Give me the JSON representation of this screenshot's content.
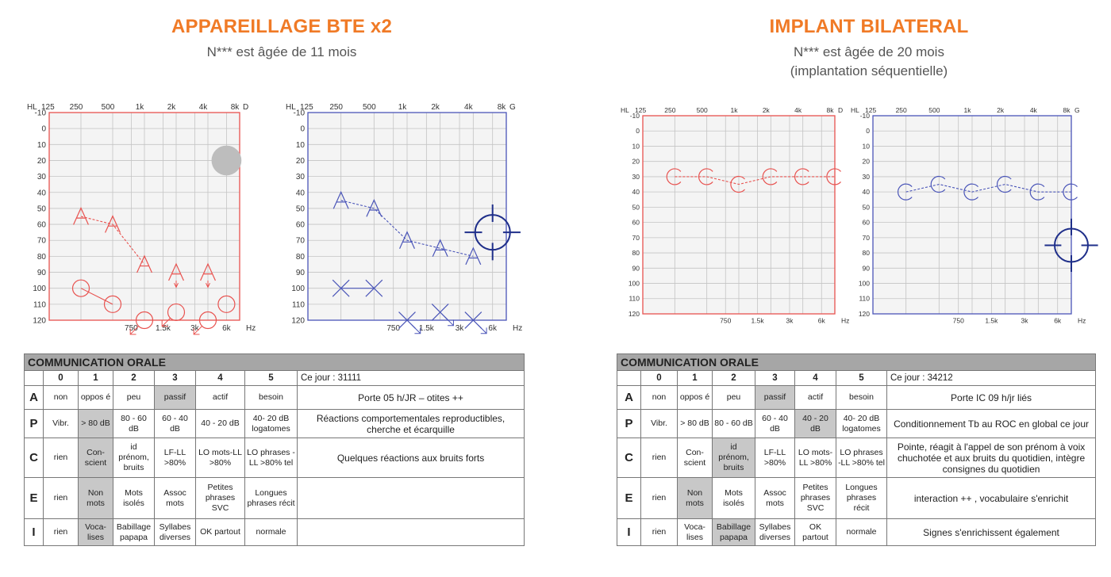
{
  "left": {
    "title": "APPAREILLAGE BTE x2",
    "subtitle_lines": [
      "N*** est âgée de 11 mois"
    ],
    "audiograms": [
      {
        "ear": "D",
        "color": "#e8524f",
        "top_freq_labels": [
          "125",
          "250",
          "500",
          "1k",
          "2k",
          "4k",
          "8k"
        ],
        "bottom_freq_labels": [
          "750",
          "1.5k",
          "3k",
          "6k"
        ],
        "hz_label": "Hz",
        "hl_label": "HL",
        "db_labels": [
          "-10",
          "0",
          "10",
          "20",
          "30",
          "40",
          "50",
          "60",
          "70",
          "80",
          "90",
          "100",
          "110",
          "120"
        ],
        "series": [
          {
            "symbol": "A",
            "points": [
              [
                250,
                55
              ],
              [
                500,
                60
              ],
              [
                1000,
                85
              ]
            ],
            "line": "dashed"
          },
          {
            "symbol": "A-down",
            "points": [
              [
                2000,
                90
              ],
              [
                4000,
                90
              ]
            ],
            "line": "none"
          },
          {
            "symbol": "O",
            "points": [
              [
                250,
                100
              ],
              [
                500,
                110
              ]
            ],
            "line": "solid"
          },
          {
            "symbol": "O-down",
            "points": [
              [
                1000,
                120
              ],
              [
                2000,
                115
              ],
              [
                4000,
                120
              ]
            ],
            "line": "none"
          },
          {
            "symbol": "O",
            "points": [
              [
                6000,
                110
              ]
            ],
            "line": "none"
          },
          {
            "symbol": "grey-dot",
            "points": [
              [
                6000,
                20
              ]
            ],
            "line": "none"
          }
        ]
      },
      {
        "ear": "G",
        "color": "#4a55b8",
        "top_freq_labels": [
          "125",
          "250",
          "500",
          "1k",
          "2k",
          "4k",
          "8k"
        ],
        "bottom_freq_labels": [
          "750",
          "1.5k",
          "3k",
          "6k"
        ],
        "hz_label": "Hz",
        "hl_label": "HL",
        "db_labels": [
          "-10",
          "0",
          "10",
          "20",
          "30",
          "40",
          "50",
          "60",
          "70",
          "80",
          "90",
          "100",
          "110",
          "120"
        ],
        "series": [
          {
            "symbol": "A",
            "points": [
              [
                250,
                45
              ],
              [
                500,
                50
              ],
              [
                1000,
                70
              ],
              [
                2000,
                75
              ],
              [
                4000,
                80
              ]
            ],
            "line": "dashed"
          },
          {
            "symbol": "X",
            "points": [
              [
                250,
                100
              ],
              [
                500,
                100
              ]
            ],
            "line": "solid"
          },
          {
            "symbol": "X-down",
            "points": [
              [
                1000,
                120
              ],
              [
                2000,
                115
              ],
              [
                4000,
                120
              ]
            ],
            "line": "none"
          },
          {
            "symbol": "target",
            "points": [
              [
                6000,
                65
              ]
            ],
            "line": "none"
          }
        ]
      }
    ],
    "table": {
      "header": "COMMUNICATION ORALE",
      "levels": [
        "0",
        "1",
        "2",
        "3",
        "4",
        "5"
      ],
      "date_label": "Ce jour : 31111",
      "rows": [
        {
          "label": "A",
          "cells": [
            "non",
            "oppos é",
            "peu",
            "passif",
            "actif",
            "besoin"
          ],
          "selected": [
            3
          ],
          "note": "Porte 05 h/JR – otites ++"
        },
        {
          "label": "P",
          "cells": [
            "Vibr.",
            "> 80 dB",
            "80 - 60 dB",
            "60 - 40 dB",
            "40 - 20 dB",
            "40- 20 dB logatomes"
          ],
          "selected": [
            1
          ],
          "note": "Réactions comportementales reproductibles, cherche et écarquille"
        },
        {
          "label": "C",
          "cells": [
            "rien",
            "Con-scient",
            "id prénom, bruits",
            "LF-LL >80%",
            "LO mots-LL >80%",
            "LO phrases -LL >80% tel"
          ],
          "selected": [
            1
          ],
          "note": "Quelques réactions aux bruits forts"
        },
        {
          "label": "E",
          "cells": [
            "rien",
            "Non mots",
            "Mots isolés",
            "Assoc mots",
            "Petites phrases SVC",
            "Longues phrases récit"
          ],
          "selected": [
            1
          ],
          "note": ""
        },
        {
          "label": "I",
          "cells": [
            "rien",
            "Voca-lises",
            "Babillage papapa",
            "Syllabes diverses",
            "OK partout",
            "normale"
          ],
          "selected": [
            1
          ],
          "note": ""
        }
      ]
    }
  },
  "right": {
    "title": "IMPLANT BILATERAL",
    "subtitle_lines": [
      "N*** est âgée de 20 mois",
      "(implantation séquentielle)"
    ],
    "audiograms": [
      {
        "ear": "D",
        "color": "#e8524f",
        "top_freq_labels": [
          "125",
          "250",
          "500",
          "1k",
          "2k",
          "4k",
          "8k"
        ],
        "bottom_freq_labels": [
          "750",
          "1.5k",
          "3k",
          "6k"
        ],
        "hz_label": "Hz",
        "hl_label": "HL",
        "db_labels": [
          "-10",
          "0",
          "10",
          "20",
          "30",
          "40",
          "50",
          "60",
          "70",
          "80",
          "90",
          "100",
          "110",
          "120"
        ],
        "series": [
          {
            "symbol": "C",
            "points": [
              [
                250,
                30
              ],
              [
                500,
                30
              ],
              [
                1000,
                35
              ],
              [
                2000,
                30
              ],
              [
                4000,
                30
              ],
              [
                8000,
                30
              ]
            ],
            "line": "dashed"
          }
        ]
      },
      {
        "ear": "G",
        "color": "#4a55b8",
        "top_freq_labels": [
          "125",
          "250",
          "500",
          "1k",
          "2k",
          "4k",
          "8k"
        ],
        "bottom_freq_labels": [
          "750",
          "1.5k",
          "3k",
          "6k"
        ],
        "hz_label": "Hz",
        "hl_label": "HL",
        "db_labels": [
          "-10",
          "0",
          "10",
          "20",
          "30",
          "40",
          "50",
          "60",
          "70",
          "80",
          "90",
          "100",
          "110",
          "120"
        ],
        "series": [
          {
            "symbol": "C",
            "points": [
              [
                250,
                40
              ],
              [
                500,
                35
              ],
              [
                1000,
                40
              ],
              [
                2000,
                35
              ],
              [
                4000,
                40
              ],
              [
                8000,
                40
              ]
            ],
            "line": "dashed"
          },
          {
            "symbol": "target",
            "points": [
              [
                8000,
                75
              ]
            ],
            "line": "none"
          }
        ]
      }
    ],
    "table": {
      "header": "COMMUNICATION ORALE",
      "levels": [
        "0",
        "1",
        "2",
        "3",
        "4",
        "5"
      ],
      "date_label": "Ce jour : 34212",
      "rows": [
        {
          "label": "A",
          "cells": [
            "non",
            "oppos é",
            "peu",
            "passif",
            "actif",
            "besoin"
          ],
          "selected": [
            3
          ],
          "note": "Porte IC 09 h/jr liés"
        },
        {
          "label": "P",
          "cells": [
            "Vibr.",
            "> 80 dB",
            "80 - 60 dB",
            "60 - 40 dB",
            "40 - 20 dB",
            "40- 20 dB logatomes"
          ],
          "selected": [
            4
          ],
          "note": "Conditionnement Tb au ROC en global ce jour"
        },
        {
          "label": "C",
          "cells": [
            "rien",
            "Con-scient",
            "id prénom, bruits",
            "LF-LL >80%",
            "LO mots-LL >80%",
            "LO phrases -LL >80% tel"
          ],
          "selected": [
            2
          ],
          "note": "Pointe, réagit à l'appel de son prénom à voix chuchotée et aux bruits du quotidien, intègre consignes du quotidien"
        },
        {
          "label": "E",
          "cells": [
            "rien",
            "Non mots",
            "Mots isolés",
            "Assoc mots",
            "Petites phrases SVC",
            "Longues phrases récit"
          ],
          "selected": [
            1
          ],
          "note": "interaction ++ , vocabulaire s'enrichit"
        },
        {
          "label": "I",
          "cells": [
            "rien",
            "Voca-lises",
            "Babillage papapa",
            "Syllabes diverses",
            "OK partout",
            "normale"
          ],
          "selected": [
            2
          ],
          "note": "Signes s'enrichissent également"
        }
      ]
    }
  }
}
